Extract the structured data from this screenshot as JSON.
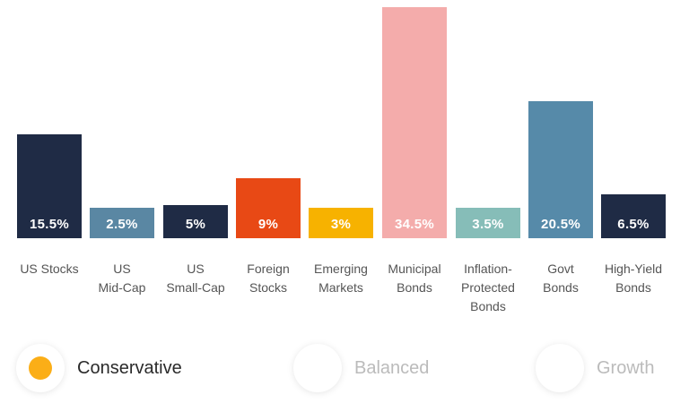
{
  "chart_data": {
    "type": "bar",
    "title": "",
    "xlabel": "",
    "ylabel": "",
    "grid": false,
    "categories": [
      "US Stocks",
      "US\nMid-Cap",
      "US\nSmall-Cap",
      "Foreign\nStocks",
      "Emerging\nMarkets",
      "Municipal\nBonds",
      "Inflation-\nProtected\nBonds",
      "Govt\nBonds",
      "High-Yield\nBonds"
    ],
    "values": [
      15.5,
      2.5,
      5,
      9,
      3,
      34.5,
      3.5,
      20.5,
      6.5
    ],
    "value_labels": [
      "15.5%",
      "2.5%",
      "5%",
      "9%",
      "3%",
      "34.5%",
      "3.5%",
      "20.5%",
      "6.5%"
    ],
    "colors": [
      "#1f2b45",
      "#5a87a3",
      "#1f2b45",
      "#e84915",
      "#f7b200",
      "#f4acab",
      "#86bdb8",
      "#568aa9",
      "#1f2b45"
    ],
    "ylim": [
      0,
      34.5
    ]
  },
  "portfolio_options": {
    "selected_color": "#fbae17",
    "items": [
      {
        "label": "Conservative",
        "selected": true
      },
      {
        "label": "Balanced",
        "selected": false
      },
      {
        "label": "Growth",
        "selected": false
      }
    ]
  }
}
